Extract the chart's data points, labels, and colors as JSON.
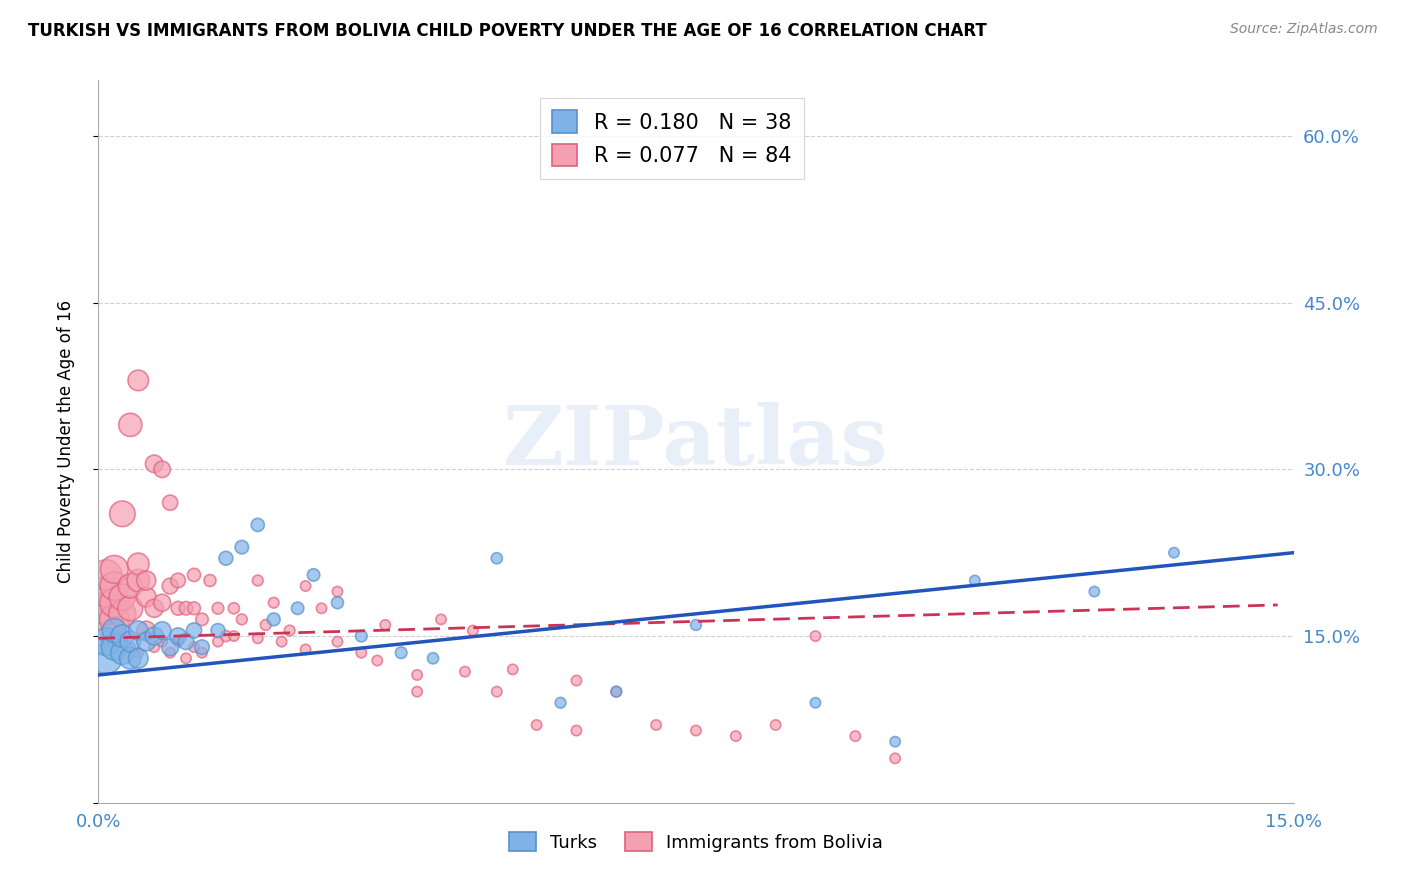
{
  "title": "TURKISH VS IMMIGRANTS FROM BOLIVIA CHILD POVERTY UNDER THE AGE OF 16 CORRELATION CHART",
  "source": "Source: ZipAtlas.com",
  "ylabel": "Child Poverty Under the Age of 16",
  "xlim": [
    0.0,
    0.15
  ],
  "ylim": [
    0.0,
    0.65
  ],
  "yticks": [
    0.0,
    0.15,
    0.3,
    0.45,
    0.6
  ],
  "ytick_labels": [
    "",
    "15.0%",
    "30.0%",
    "45.0%",
    "60.0%"
  ],
  "xticks": [
    0.0,
    0.05,
    0.1,
    0.15
  ],
  "xtick_labels": [
    "0.0%",
    "",
    "",
    "15.0%"
  ],
  "background_color": "#ffffff",
  "grid_color": "#d0d0d0",
  "watermark_text": "ZIPatlas",
  "turks_color": "#7fb3e8",
  "turks_edge_color": "#5591cc",
  "bolivia_color": "#f4a0b0",
  "bolivia_edge_color": "#e06080",
  "turks_R": 0.18,
  "turks_N": 38,
  "bolivia_R": 0.077,
  "bolivia_N": 84,
  "turks_line_color": "#2255bb",
  "bolivia_line_color": "#cc3355",
  "tick_color": "#4488cc",
  "legend_text_color": "#000000",
  "legend_val_color": "#2255bb",
  "legend_n_color": "#cc2200",
  "turks_x": [
    0.001,
    0.001,
    0.002,
    0.002,
    0.003,
    0.003,
    0.004,
    0.004,
    0.005,
    0.005,
    0.006,
    0.007,
    0.008,
    0.009,
    0.01,
    0.011,
    0.012,
    0.013,
    0.015,
    0.016,
    0.018,
    0.02,
    0.022,
    0.025,
    0.027,
    0.03,
    0.033,
    0.038,
    0.042,
    0.05,
    0.058,
    0.065,
    0.075,
    0.09,
    0.1,
    0.11,
    0.125,
    0.135
  ],
  "turks_y": [
    0.13,
    0.145,
    0.14,
    0.155,
    0.135,
    0.15,
    0.13,
    0.145,
    0.13,
    0.155,
    0.145,
    0.15,
    0.155,
    0.14,
    0.15,
    0.145,
    0.155,
    0.14,
    0.155,
    0.22,
    0.23,
    0.25,
    0.165,
    0.175,
    0.205,
    0.18,
    0.15,
    0.135,
    0.13,
    0.22,
    0.09,
    0.1,
    0.16,
    0.09,
    0.055,
    0.2,
    0.19,
    0.225
  ],
  "turks_size": [
    500,
    400,
    350,
    300,
    280,
    260,
    240,
    220,
    200,
    190,
    180,
    170,
    160,
    150,
    140,
    130,
    120,
    110,
    100,
    100,
    95,
    90,
    85,
    80,
    80,
    75,
    70,
    70,
    65,
    65,
    60,
    60,
    60,
    55,
    55,
    55,
    55,
    55
  ],
  "bolivia_x": [
    0.001,
    0.001,
    0.001,
    0.001,
    0.002,
    0.002,
    0.002,
    0.002,
    0.003,
    0.003,
    0.003,
    0.004,
    0.004,
    0.004,
    0.005,
    0.005,
    0.005,
    0.006,
    0.006,
    0.006,
    0.007,
    0.007,
    0.008,
    0.008,
    0.009,
    0.009,
    0.01,
    0.01,
    0.011,
    0.012,
    0.012,
    0.013,
    0.014,
    0.015,
    0.016,
    0.017,
    0.018,
    0.02,
    0.021,
    0.022,
    0.024,
    0.026,
    0.028,
    0.03,
    0.033,
    0.036,
    0.04,
    0.043,
    0.047,
    0.05,
    0.055,
    0.06,
    0.065,
    0.07,
    0.075,
    0.08,
    0.085,
    0.09,
    0.095,
    0.1,
    0.001,
    0.002,
    0.003,
    0.004,
    0.005,
    0.006,
    0.007,
    0.008,
    0.009,
    0.01,
    0.011,
    0.012,
    0.013,
    0.015,
    0.017,
    0.02,
    0.023,
    0.026,
    0.03,
    0.035,
    0.04,
    0.046,
    0.052,
    0.06
  ],
  "bolivia_y": [
    0.16,
    0.175,
    0.19,
    0.205,
    0.165,
    0.18,
    0.195,
    0.21,
    0.17,
    0.185,
    0.26,
    0.175,
    0.195,
    0.34,
    0.2,
    0.215,
    0.38,
    0.185,
    0.2,
    0.155,
    0.175,
    0.305,
    0.18,
    0.3,
    0.195,
    0.27,
    0.2,
    0.175,
    0.175,
    0.205,
    0.175,
    0.165,
    0.2,
    0.175,
    0.15,
    0.175,
    0.165,
    0.2,
    0.16,
    0.18,
    0.155,
    0.195,
    0.175,
    0.19,
    0.135,
    0.16,
    0.1,
    0.165,
    0.155,
    0.1,
    0.07,
    0.065,
    0.1,
    0.07,
    0.065,
    0.06,
    0.07,
    0.15,
    0.06,
    0.04,
    0.145,
    0.15,
    0.145,
    0.14,
    0.135,
    0.15,
    0.14,
    0.145,
    0.135,
    0.145,
    0.13,
    0.14,
    0.135,
    0.145,
    0.15,
    0.148,
    0.145,
    0.138,
    0.145,
    0.128,
    0.115,
    0.118,
    0.12,
    0.11
  ],
  "bolivia_size": [
    600,
    550,
    500,
    480,
    460,
    440,
    420,
    400,
    380,
    360,
    340,
    320,
    300,
    280,
    260,
    240,
    220,
    200,
    190,
    180,
    170,
    160,
    150,
    140,
    130,
    120,
    110,
    100,
    95,
    90,
    85,
    80,
    75,
    70,
    65,
    65,
    60,
    60,
    60,
    58,
    58,
    55,
    55,
    55,
    55,
    55,
    55,
    55,
    55,
    55,
    55,
    55,
    55,
    55,
    55,
    55,
    55,
    55,
    55,
    55,
    55,
    55,
    55,
    55,
    55,
    55,
    55,
    55,
    55,
    55,
    55,
    55,
    55,
    55,
    55,
    55,
    55,
    55,
    55,
    55,
    55,
    55,
    55,
    55
  ]
}
